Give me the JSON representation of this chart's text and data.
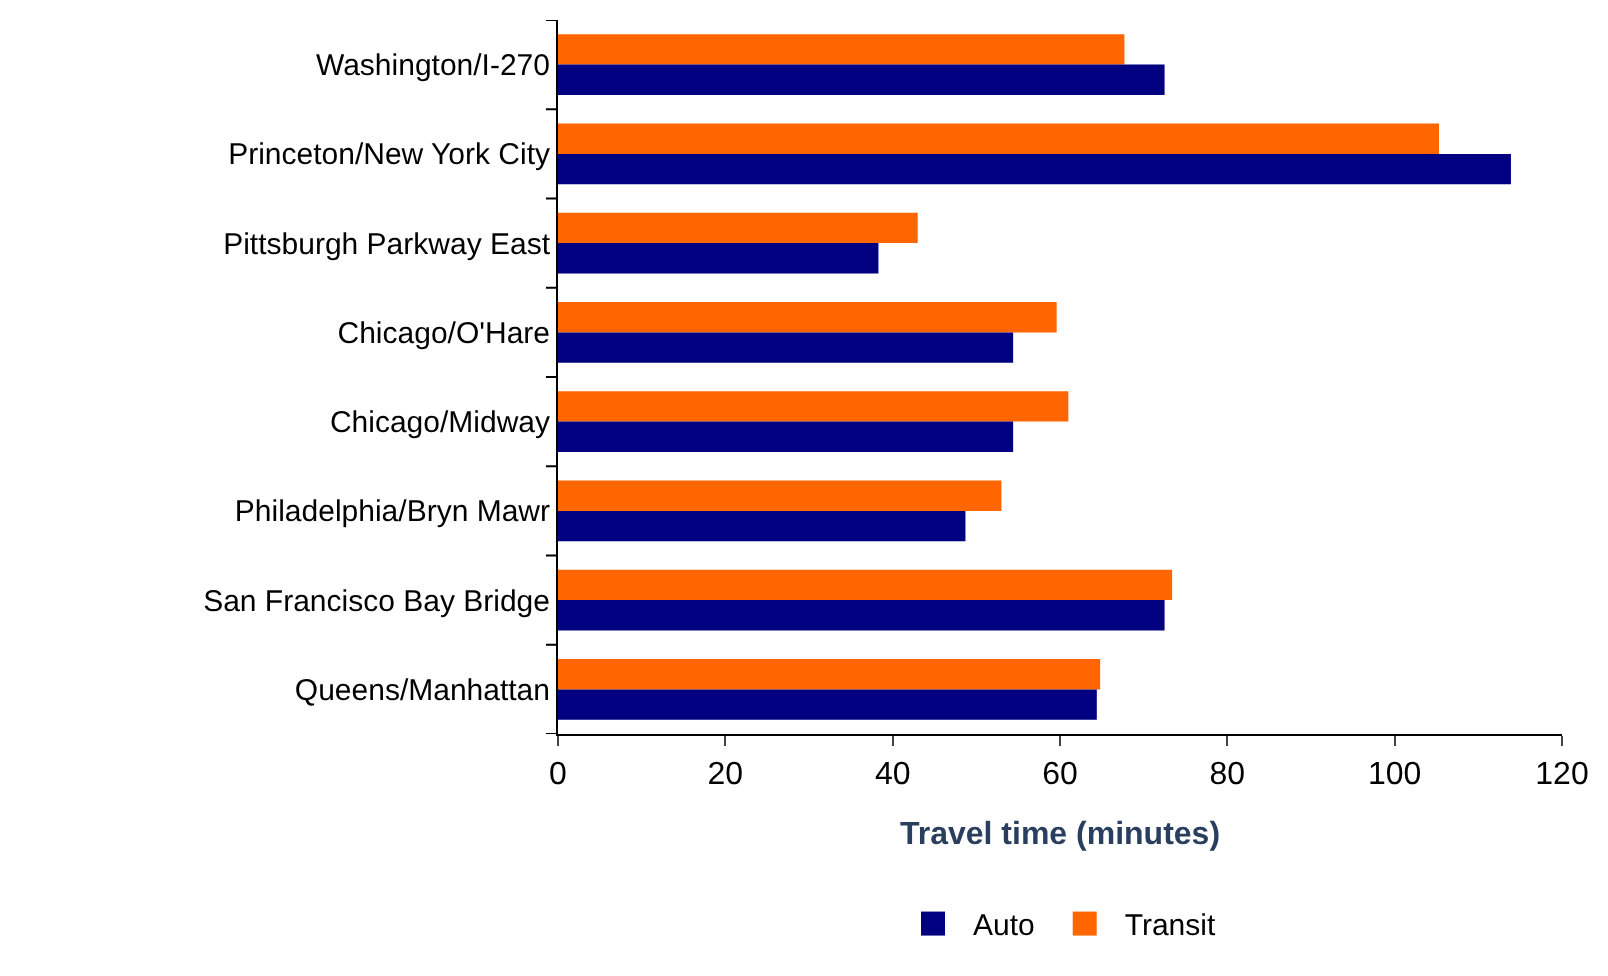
{
  "chart_data": {
    "type": "bar",
    "orientation": "horizontal",
    "xlabel": "Travel time (minutes)",
    "categories": [
      "Washington/I-270",
      "Princeton/New York City",
      "Pittsburgh Parkway East",
      "Chicago/O'Hare",
      "Chicago/Midway",
      "Philadelphia/Bryn Mawr",
      "San Francisco Bay Bridge",
      "Queens/Manhattan"
    ],
    "series": [
      {
        "name": "Auto",
        "color": "#000080",
        "values": [
          72.5,
          113.9,
          38.3,
          54.4,
          54.4,
          48.7,
          72.5,
          64.4
        ]
      },
      {
        "name": "Transit",
        "color": "#ff6600",
        "values": [
          67.7,
          105.3,
          43.0,
          59.6,
          61.0,
          53.0,
          73.4,
          64.8
        ]
      }
    ],
    "xlim": [
      0,
      120
    ],
    "xticks": [
      0,
      20,
      40,
      60,
      80,
      100,
      120
    ],
    "grid": false,
    "legend": "bottom"
  }
}
